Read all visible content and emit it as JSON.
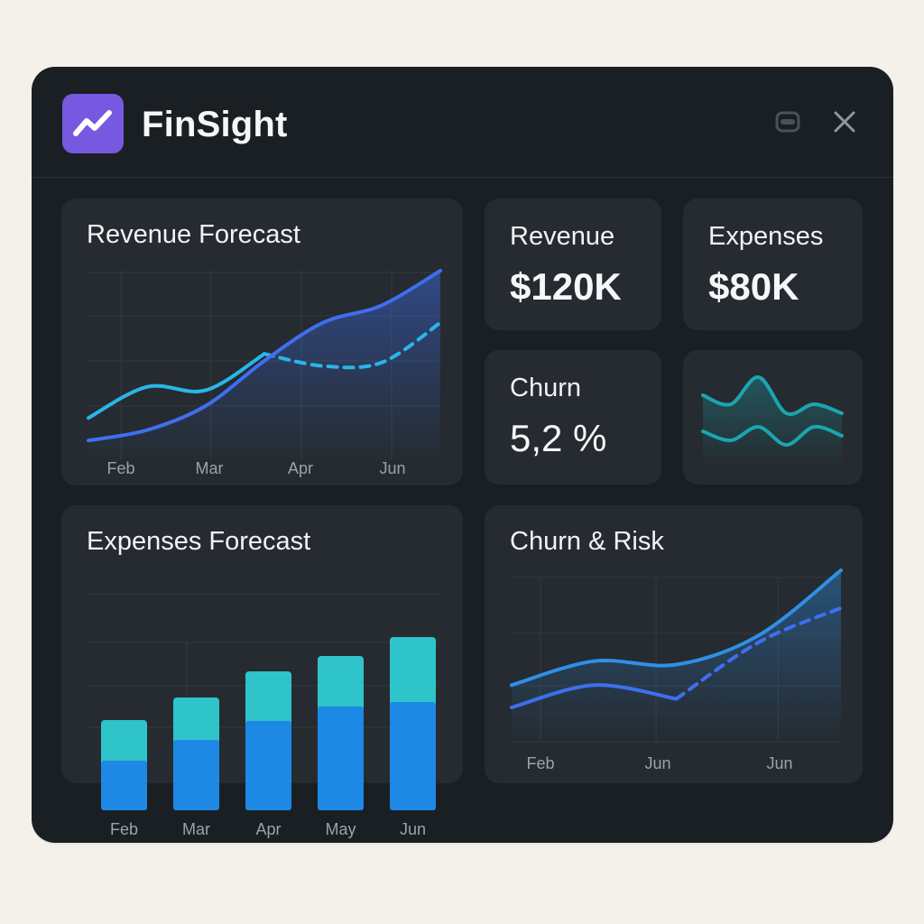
{
  "app": {
    "title": "FinSight",
    "icon": "trend-line-icon"
  },
  "window_controls": {
    "minimize_icon": "minimize-icon",
    "close_icon": "close-icon"
  },
  "colors": {
    "accent_purple": "#7659e0",
    "line_cyan": "#29b6e8",
    "line_blue": "#3f6ff0",
    "bar_blue": "#1e88e5",
    "bar_teal": "#2ec4c9",
    "wave_teal": "#1aa6b0"
  },
  "kpis": {
    "revenue": {
      "label": "Revenue",
      "value": "$120K"
    },
    "expenses": {
      "label": "Expenses",
      "value": "$80K"
    },
    "churn": {
      "label": "Churn",
      "value": "5,2 %"
    }
  },
  "chart_data": [
    {
      "id": "revenue_forecast",
      "type": "line",
      "title": "Revenue Forecast",
      "x_ticks": [
        "Feb",
        "Mar",
        "Apr",
        "Jun"
      ],
      "grid": true,
      "series": [
        {
          "style": "solid-then-dashed",
          "color": "#29b6e8",
          "values": [
            0.15,
            0.33,
            0.31,
            0.52,
            0.45,
            0.47,
            0.7
          ]
        },
        {
          "style": "solid-area",
          "color": "#3f6ff0",
          "values": [
            0.02,
            0.08,
            0.22,
            0.48,
            0.7,
            0.8,
            1.0
          ]
        }
      ]
    },
    {
      "id": "expenses_forecast",
      "type": "bar",
      "title": "Expenses Forecast",
      "categories": [
        "Feb",
        "Mar",
        "Apr",
        "May",
        "Jun"
      ],
      "grid": true,
      "series": [
        {
          "color": "#1e88e5",
          "values": [
            55,
            78,
            99,
            115,
            120
          ]
        },
        {
          "color": "#2ec4c9",
          "values": [
            45,
            47,
            55,
            56,
            72
          ]
        }
      ]
    },
    {
      "id": "churn_risk",
      "type": "line",
      "title": "Churn & Risk",
      "x_ticks": [
        "Feb",
        "Jun",
        "Jun"
      ],
      "grid": true,
      "series": [
        {
          "style": "solid-area",
          "color": "#2f8fe8",
          "values": [
            0.33,
            0.47,
            0.45,
            0.62,
            1.0
          ]
        },
        {
          "style": "solid-then-dashed",
          "color": "#3f6ff0",
          "values": [
            0.2,
            0.33,
            0.25,
            0.58,
            0.78
          ]
        }
      ]
    },
    {
      "id": "sparkline_waves",
      "type": "line",
      "title": "",
      "series": [
        {
          "color": "#1aa6b0",
          "values": [
            0.7,
            0.6,
            0.9,
            0.5,
            0.6,
            0.5
          ]
        },
        {
          "color": "#1aa6b0",
          "values": [
            0.3,
            0.2,
            0.35,
            0.15,
            0.35,
            0.25
          ]
        }
      ]
    }
  ]
}
